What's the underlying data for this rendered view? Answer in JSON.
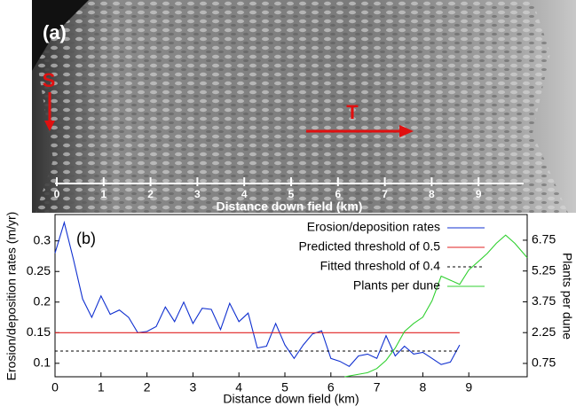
{
  "panel_a": {
    "label": "(a)",
    "start_marker": "S",
    "direction_marker": "T",
    "scale_labels": [
      "0",
      "1",
      "2",
      "3",
      "4",
      "5",
      "6",
      "7",
      "8",
      "9"
    ],
    "scale_title": "Distance down field (km)"
  },
  "chart_data": {
    "type": "line",
    "panel_label": "(b)",
    "xlabel": "Distance down field (km)",
    "ylabel": "Erosion/deposition rates (m/yr)",
    "y2label": "Plants per dune",
    "xlim": [
      0,
      10.27
    ],
    "xticks": [
      0,
      1,
      2,
      3,
      4,
      5,
      6,
      7,
      8,
      9
    ],
    "ylim": [
      0.078,
      0.343
    ],
    "yticks": [
      0.1,
      0.15,
      0.2,
      0.25,
      0.3
    ],
    "y2lim": [
      0.1,
      8.0
    ],
    "y2ticks": [
      0.75,
      2.25,
      3.75,
      5.25,
      6.75
    ],
    "legend": "upper right",
    "series": [
      {
        "name": "Erosion/deposition rates",
        "color": "#1030d0",
        "x": [
          0,
          0.2,
          0.4,
          0.6,
          0.8,
          1.0,
          1.2,
          1.4,
          1.6,
          1.8,
          2.0,
          2.2,
          2.4,
          2.6,
          2.8,
          3.0,
          3.2,
          3.4,
          3.6,
          3.8,
          4.0,
          4.2,
          4.4,
          4.6,
          4.8,
          5.0,
          5.2,
          5.4,
          5.6,
          5.8,
          6.0,
          6.2,
          6.4,
          6.6,
          6.8,
          7.0,
          7.2,
          7.4,
          7.6,
          7.8,
          8.0,
          8.2,
          8.4,
          8.6,
          8.8
        ],
        "values": [
          0.28,
          0.33,
          0.27,
          0.205,
          0.175,
          0.21,
          0.18,
          0.187,
          0.175,
          0.15,
          0.152,
          0.16,
          0.192,
          0.168,
          0.2,
          0.165,
          0.19,
          0.188,
          0.155,
          0.198,
          0.168,
          0.182,
          0.125,
          0.128,
          0.165,
          0.13,
          0.108,
          0.13,
          0.148,
          0.153,
          0.108,
          0.103,
          0.095,
          0.112,
          0.115,
          0.108,
          0.145,
          0.112,
          0.128,
          0.115,
          0.118,
          0.108,
          0.098,
          0.102,
          0.13
        ]
      },
      {
        "name": "Predicted threshold of 0.5",
        "color": "#e02020",
        "x": [
          0,
          8.8
        ],
        "values": [
          0.15,
          0.15
        ]
      },
      {
        "name": "Fitted threshold of 0.4",
        "color": "#000000",
        "dashed": true,
        "x": [
          0,
          8.8
        ],
        "values": [
          0.12,
          0.12
        ]
      },
      {
        "name": "Plants per dune",
        "color": "#30d030",
        "axis": "y2",
        "x": [
          6.3,
          6.8,
          7.0,
          7.2,
          7.4,
          7.6,
          7.8,
          8.0,
          8.2,
          8.4,
          8.6,
          8.8,
          9.0,
          9.2,
          9.4,
          9.6,
          9.8,
          10.0,
          10.27
        ],
        "values": [
          0.1,
          0.3,
          0.5,
          0.9,
          1.5,
          2.3,
          2.7,
          3.0,
          3.8,
          5.0,
          4.8,
          4.6,
          5.3,
          5.7,
          6.1,
          6.6,
          7.0,
          6.6,
          5.9
        ]
      }
    ]
  }
}
